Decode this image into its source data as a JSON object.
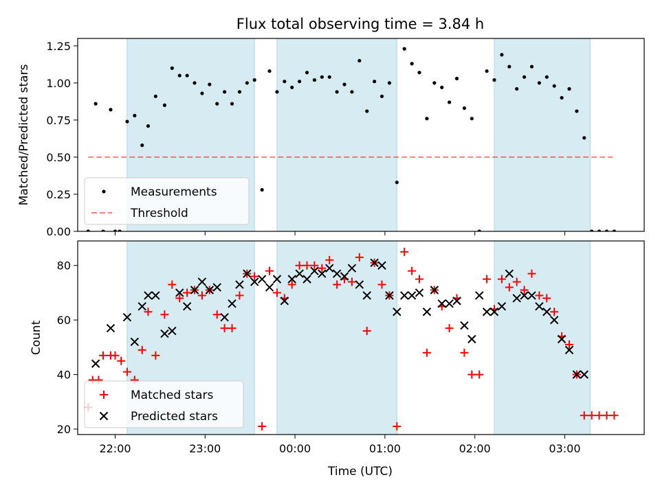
{
  "title": "Flux total observing time = 3.84 h",
  "xlabel": "Time (UTC)",
  "x_tick_labels": [
    "22:00",
    "23:00",
    "00:00",
    "01:00",
    "02:00",
    "03:00"
  ],
  "colors": {
    "band": "#add8e6",
    "measurement": "#000000",
    "threshold": "#ff0000",
    "matched": "#ff0000",
    "predicted": "#000000"
  },
  "chart_data": [
    {
      "type": "scatter",
      "ylabel": "Matched/Predicted stars",
      "x_range": [
        "21:35",
        "03:53"
      ],
      "ylim": [
        0,
        1.3
      ],
      "y_ticks": [
        "0.00",
        "0.25",
        "0.50",
        "0.75",
        "1.00",
        "1.25"
      ],
      "y_tick_values": [
        0,
        0.25,
        0.5,
        0.75,
        1.0,
        1.25
      ],
      "shaded_intervals": [
        [
          "22:08",
          "23:33"
        ],
        [
          "23:48",
          "01:08"
        ],
        [
          "02:13",
          "03:17"
        ]
      ],
      "legend": {
        "placement": "lower-left",
        "entries": [
          "Measurements",
          "Threshold"
        ]
      },
      "threshold": {
        "value": 0.5,
        "x_from": "21:42",
        "x_to": "03:32"
      },
      "series": [
        {
          "name": "Measurements",
          "x": [
            "21:42",
            "21:47",
            "21:52",
            "21:57",
            "22:00",
            "22:03",
            "22:08",
            "22:13",
            "22:18",
            "22:22",
            "22:27",
            "22:33",
            "22:38",
            "22:43",
            "22:48",
            "22:53",
            "22:58",
            "23:03",
            "23:08",
            "23:13",
            "23:18",
            "23:23",
            "23:28",
            "23:33",
            "23:38",
            "23:43",
            "23:48",
            "23:53",
            "23:58",
            "00:03",
            "00:08",
            "00:13",
            "00:18",
            "00:23",
            "00:28",
            "00:33",
            "00:38",
            "00:43",
            "00:48",
            "00:53",
            "00:58",
            "01:03",
            "01:08",
            "01:13",
            "01:18",
            "01:23",
            "01:28",
            "01:33",
            "01:38",
            "01:43",
            "01:48",
            "01:53",
            "01:58",
            "02:03",
            "02:08",
            "02:13",
            "02:18",
            "02:23",
            "02:28",
            "02:33",
            "02:38",
            "02:43",
            "02:48",
            "02:53",
            "02:58",
            "03:03",
            "03:08",
            "03:13",
            "03:18",
            "03:23",
            "03:28",
            "03:33"
          ],
          "values": [
            0,
            0.86,
            0,
            0.82,
            0,
            0,
            0.74,
            0.78,
            0.58,
            0.71,
            0.91,
            0.85,
            1.1,
            1.05,
            1.05,
            1.0,
            0.93,
            0.99,
            0.86,
            0.94,
            0.86,
            0.94,
            1.0,
            1.02,
            0.28,
            1.08,
            0.94,
            1.01,
            0.97,
            1.01,
            1.07,
            1.02,
            1.04,
            1.04,
            0.94,
            0.99,
            0.94,
            1.15,
            0.81,
            1.01,
            0.91,
            1.0,
            0.33,
            1.23,
            1.13,
            1.07,
            0.76,
            1.0,
            0.97,
            0.87,
            1.03,
            0.83,
            0.76,
            0,
            1.08,
            1.02,
            1.19,
            1.11,
            0.96,
            1.04,
            1.11,
            1.0,
            1.04,
            0.98,
            0.9,
            0.96,
            0.81,
            0.63,
            0,
            0,
            0,
            0
          ]
        }
      ]
    },
    {
      "type": "scatter",
      "ylabel": "Count",
      "x_range": [
        "21:35",
        "03:53"
      ],
      "ylim": [
        18,
        89
      ],
      "y_ticks": [
        "20",
        "40",
        "60",
        "80"
      ],
      "y_tick_values": [
        20,
        40,
        60,
        80
      ],
      "shaded_intervals": [
        [
          "22:08",
          "23:33"
        ],
        [
          "23:48",
          "01:08"
        ],
        [
          "02:13",
          "03:17"
        ]
      ],
      "legend": {
        "placement": "lower-left",
        "entries": [
          "Matched stars",
          "Predicted stars"
        ]
      },
      "series": [
        {
          "name": "Matched stars",
          "marker": "plus",
          "x": [
            "21:42",
            "21:45",
            "21:49",
            "21:52",
            "21:57",
            "22:00",
            "22:04",
            "22:08",
            "22:13",
            "22:18",
            "22:22",
            "22:27",
            "22:33",
            "22:38",
            "22:43",
            "22:48",
            "22:53",
            "22:58",
            "23:03",
            "23:08",
            "23:13",
            "23:18",
            "23:23",
            "23:28",
            "23:33",
            "23:38",
            "23:43",
            "23:48",
            "23:53",
            "23:58",
            "00:03",
            "00:08",
            "00:13",
            "00:18",
            "00:23",
            "00:28",
            "00:33",
            "00:38",
            "00:43",
            "00:48",
            "00:53",
            "00:58",
            "01:03",
            "01:08",
            "01:13",
            "01:18",
            "01:23",
            "01:28",
            "01:33",
            "01:38",
            "01:43",
            "01:48",
            "01:53",
            "01:58",
            "02:03",
            "02:08",
            "02:13",
            "02:18",
            "02:23",
            "02:28",
            "02:33",
            "02:38",
            "02:43",
            "02:48",
            "02:53",
            "02:58",
            "03:03",
            "03:08",
            "03:13",
            "03:18",
            "03:23",
            "03:28",
            "03:33"
          ],
          "values": [
            28,
            38,
            38,
            47,
            47,
            47,
            45,
            41,
            38,
            49,
            63,
            47,
            62,
            73,
            68,
            70,
            71,
            69,
            71,
            62,
            57,
            57,
            69,
            77,
            76,
            21,
            78,
            70,
            68,
            73,
            80,
            80,
            80,
            79,
            82,
            73,
            75,
            74,
            83,
            56,
            81,
            73,
            69,
            21,
            85,
            78,
            75,
            48,
            71,
            65,
            57,
            68,
            48,
            40,
            40,
            75,
            64,
            75,
            72,
            74,
            71,
            77,
            69,
            68,
            63,
            54,
            51,
            40,
            25,
            25,
            25,
            25,
            25
          ],
          "note_hidden": ""
        },
        {
          "name": "Predicted stars",
          "marker": "x",
          "x": [
            "21:47",
            "21:57",
            "22:08",
            "22:13",
            "22:18",
            "22:22",
            "22:27",
            "22:33",
            "22:38",
            "22:43",
            "22:48",
            "22:53",
            "22:58",
            "23:03",
            "23:08",
            "23:13",
            "23:18",
            "23:23",
            "23:28",
            "23:33",
            "23:38",
            "23:43",
            "23:48",
            "23:53",
            "23:58",
            "00:03",
            "00:08",
            "00:13",
            "00:18",
            "00:23",
            "00:28",
            "00:33",
            "00:38",
            "00:43",
            "00:48",
            "00:53",
            "00:58",
            "01:03",
            "01:08",
            "01:13",
            "01:18",
            "01:23",
            "01:28",
            "01:33",
            "01:38",
            "01:43",
            "01:48",
            "01:53",
            "01:58",
            "02:03",
            "02:08",
            "02:13",
            "02:18",
            "02:23",
            "02:28",
            "02:33",
            "02:38",
            "02:43",
            "02:48",
            "02:53",
            "02:58",
            "03:03",
            "03:08",
            "03:13"
          ],
          "values": [
            44,
            57,
            61,
            52,
            65,
            69,
            69,
            55,
            56,
            70,
            65,
            71,
            74,
            71,
            72,
            61,
            66,
            73,
            77,
            74,
            75,
            72,
            75,
            67,
            75,
            77,
            75,
            78,
            77,
            79,
            77,
            76,
            79,
            73,
            69,
            81,
            80,
            69,
            63,
            69,
            69,
            70,
            63,
            71,
            66,
            66,
            67,
            58,
            53,
            69,
            63,
            63,
            65,
            77,
            68,
            69,
            69,
            65,
            63,
            60,
            53,
            49,
            40,
            40
          ]
        }
      ]
    }
  ]
}
